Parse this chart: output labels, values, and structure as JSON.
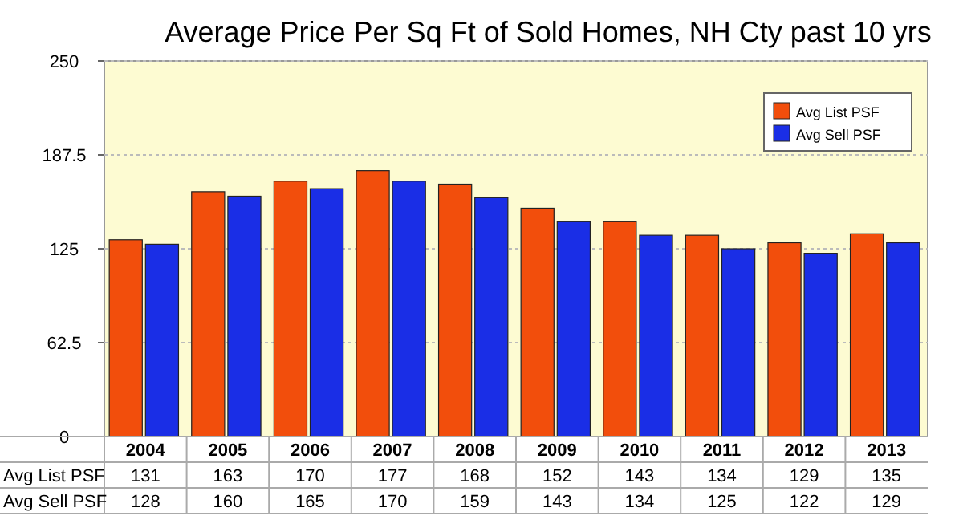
{
  "chart_data": {
    "type": "bar",
    "title": "Average Price Per Sq Ft of Sold Homes, NH Cty past 10 yrs",
    "categories": [
      "2004",
      "2005",
      "2006",
      "2007",
      "2008",
      "2009",
      "2010",
      "2011",
      "2012",
      "2013"
    ],
    "series": [
      {
        "name": "Avg List PSF",
        "color": "#f24e0c",
        "values": [
          131,
          163,
          170,
          177,
          168,
          152,
          143,
          134,
          129,
          135
        ]
      },
      {
        "name": "Avg Sell PSF",
        "color": "#1a2ee6",
        "values": [
          128,
          160,
          165,
          170,
          159,
          143,
          134,
          125,
          122,
          129
        ]
      }
    ],
    "ylim": [
      0,
      250
    ],
    "yticks": [
      0,
      62.5,
      125,
      187.5,
      250
    ],
    "grid": "y",
    "legend": "top right",
    "data_labels": true
  }
}
